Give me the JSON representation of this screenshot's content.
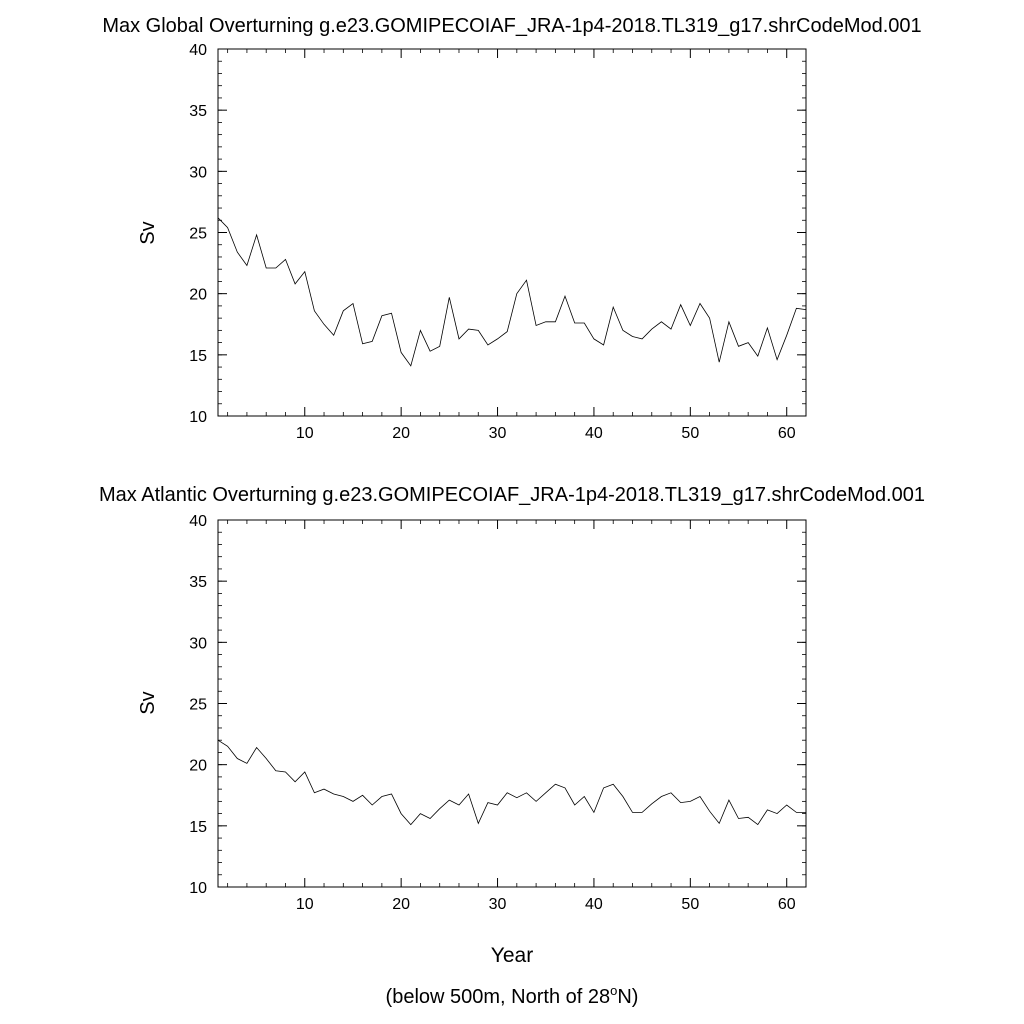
{
  "chart_data": [
    {
      "type": "line",
      "title": "Max Global Overturning g.e23.GOMIPECOIAF_JRA-1p4-2018.TL319_g17.shrCodeMod.001",
      "xlabel": "",
      "ylabel": "Sv",
      "xlim": [
        1,
        62
      ],
      "ylim": [
        10,
        40
      ],
      "xticks": [
        10,
        20,
        30,
        40,
        50,
        60
      ],
      "yticks": [
        10,
        15,
        20,
        25,
        30,
        35,
        40
      ],
      "grid": false,
      "x": [
        1,
        2,
        3,
        4,
        5,
        6,
        7,
        8,
        9,
        10,
        11,
        12,
        13,
        14,
        15,
        16,
        17,
        18,
        19,
        20,
        21,
        22,
        23,
        24,
        25,
        26,
        27,
        28,
        29,
        30,
        31,
        32,
        33,
        34,
        35,
        36,
        37,
        38,
        39,
        40,
        41,
        42,
        43,
        44,
        45,
        46,
        47,
        48,
        49,
        50,
        51,
        52,
        53,
        54,
        55,
        56,
        57,
        58,
        59,
        60,
        61,
        62
      ],
      "values": [
        26.2,
        25.4,
        23.4,
        22.3,
        24.8,
        22.1,
        22.1,
        22.8,
        20.8,
        21.8,
        18.6,
        17.5,
        16.6,
        18.6,
        19.2,
        15.9,
        16.1,
        18.2,
        18.4,
        15.2,
        14.1,
        17.0,
        15.3,
        15.7,
        19.7,
        16.3,
        17.1,
        17.0,
        15.8,
        16.3,
        16.9,
        20.0,
        21.1,
        17.4,
        17.7,
        17.7,
        19.8,
        17.6,
        17.6,
        16.3,
        15.8,
        18.9,
        17.0,
        16.5,
        16.3,
        17.1,
        17.7,
        17.1,
        19.1,
        17.4,
        19.2,
        18.0,
        14.4,
        17.7,
        15.7,
        16.0,
        14.9,
        17.2,
        14.6,
        16.6,
        18.8,
        18.7
      ]
    },
    {
      "type": "line",
      "title": "Max Atlantic Overturning g.e23.GOMIPECOIAF_JRA-1p4-2018.TL319_g17.shrCodeMod.001",
      "xlabel": "Year",
      "ylabel": "Sv",
      "xlim": [
        1,
        62
      ],
      "ylim": [
        10,
        40
      ],
      "xticks": [
        10,
        20,
        30,
        40,
        50,
        60
      ],
      "yticks": [
        10,
        15,
        20,
        25,
        30,
        35,
        40
      ],
      "grid": false,
      "x": [
        1,
        2,
        3,
        4,
        5,
        6,
        7,
        8,
        9,
        10,
        11,
        12,
        13,
        14,
        15,
        16,
        17,
        18,
        19,
        20,
        21,
        22,
        23,
        24,
        25,
        26,
        27,
        28,
        29,
        30,
        31,
        32,
        33,
        34,
        35,
        36,
        37,
        38,
        39,
        40,
        41,
        42,
        43,
        44,
        45,
        46,
        47,
        48,
        49,
        50,
        51,
        52,
        53,
        54,
        55,
        56,
        57,
        58,
        59,
        60,
        61,
        62
      ],
      "values": [
        22.0,
        21.5,
        20.5,
        20.1,
        21.4,
        20.5,
        19.5,
        19.4,
        18.6,
        19.4,
        17.7,
        18.0,
        17.6,
        17.4,
        17.0,
        17.5,
        16.7,
        17.4,
        17.6,
        16.0,
        15.1,
        16.0,
        15.6,
        16.4,
        17.1,
        16.7,
        17.6,
        15.2,
        16.9,
        16.7,
        17.7,
        17.3,
        17.7,
        17.0,
        17.7,
        18.4,
        18.1,
        16.7,
        17.4,
        16.1,
        18.1,
        18.4,
        17.4,
        16.1,
        16.1,
        16.8,
        17.4,
        17.7,
        16.9,
        17.0,
        17.4,
        16.2,
        15.2,
        17.1,
        15.6,
        15.7,
        15.1,
        16.3,
        16.0,
        16.7,
        16.1,
        16.1
      ]
    }
  ],
  "footnote": {
    "prefix": "(below 500m, North of 28",
    "superscript": "o",
    "suffix": "N)"
  }
}
